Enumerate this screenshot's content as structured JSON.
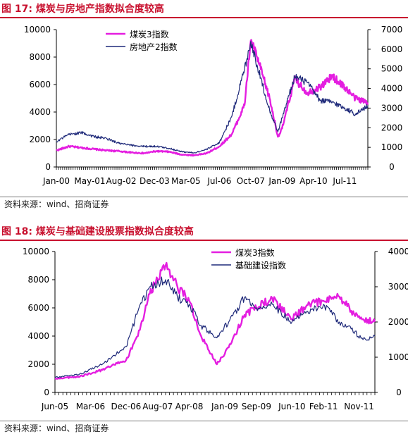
{
  "figures": [
    {
      "title": "图 17: 煤炭与房地产指数拟合度较高",
      "source": "资料来源：wind、招商证券"
    },
    {
      "title": "图 18: 煤炭与基础建设股票指数拟合度较高",
      "source": "资料来源：wind、招商证券"
    }
  ],
  "colors": {
    "coal": "#e41ee0",
    "other": "#1f2a7a",
    "title": "#c8102e"
  },
  "chart_data": [
    {
      "type": "line",
      "title": "",
      "legend_placement": "top-left",
      "x_tick_labels": [
        "Jan-00",
        "May-01",
        "Aug-02",
        "Dec-03",
        "Mar-05",
        "Jul-06",
        "Oct-07",
        "Jan-09",
        "Apr-10",
        "Jul-11"
      ],
      "y_left": {
        "lim": [
          0,
          10000
        ],
        "ticks": [
          0,
          2000,
          4000,
          6000,
          8000,
          10000
        ]
      },
      "y_right": {
        "lim": [
          0,
          7000
        ],
        "ticks": [
          0,
          1000,
          2000,
          3000,
          4000,
          5000,
          6000,
          7000
        ]
      },
      "series": [
        {
          "name": "煤炭3指数",
          "axis": "left",
          "color": "#e41ee0",
          "x": [
            "Jan-00",
            "Jul-00",
            "Jan-01",
            "Jul-01",
            "Jan-02",
            "Jul-02",
            "Jan-03",
            "Jul-03",
            "Jan-04",
            "Jul-04",
            "Jan-05",
            "Jul-05",
            "Jan-06",
            "Jul-06",
            "Jan-07",
            "Jul-07",
            "Oct-07",
            "Jan-08",
            "Jul-08",
            "Nov-08",
            "Jan-09",
            "Jul-09",
            "Jan-10",
            "Jul-10",
            "Jan-11",
            "Jul-11",
            "Dec-11",
            "Jun-12"
          ],
          "values": [
            1200,
            1500,
            1400,
            1300,
            1200,
            1150,
            1050,
            1000,
            1150,
            1100,
            900,
            850,
            1000,
            1500,
            2400,
            4500,
            9200,
            8000,
            5000,
            2200,
            2800,
            6400,
            5400,
            5800,
            6600,
            5800,
            5000,
            4700
          ]
        },
        {
          "name": "房地产2指数",
          "axis": "right",
          "color": "#1f2a7a",
          "x": [
            "Jan-00",
            "Jul-00",
            "Jan-01",
            "Jul-01",
            "Jan-02",
            "Jul-02",
            "Jan-03",
            "Jul-03",
            "Jan-04",
            "Jul-04",
            "Jan-05",
            "Jul-05",
            "Jan-06",
            "Jul-06",
            "Jan-07",
            "Jul-07",
            "Oct-07",
            "Jan-08",
            "Jul-08",
            "Nov-08",
            "Jan-09",
            "Jul-09",
            "Jan-10",
            "Jul-10",
            "Jan-11",
            "Jul-11",
            "Dec-11",
            "Jun-12"
          ],
          "values": [
            1300,
            1650,
            1750,
            1550,
            1450,
            1200,
            1100,
            1050,
            1050,
            950,
            780,
            720,
            900,
            1250,
            2600,
            5000,
            6400,
            5200,
            2900,
            1800,
            2500,
            4600,
            4300,
            3400,
            3300,
            3000,
            2700,
            3100
          ]
        }
      ]
    },
    {
      "type": "line",
      "title": "",
      "legend_placement": "top-right",
      "x_tick_labels": [
        "Jun-05",
        "Mar-06",
        "Dec-06",
        "Aug-07",
        "Apr-08",
        "Jan-09",
        "Sep-09",
        "Jun-10",
        "Feb-11",
        "Nov-11"
      ],
      "y_left": {
        "lim": [
          0,
          10000
        ],
        "ticks": [
          0,
          2000,
          4000,
          6000,
          8000,
          10000
        ]
      },
      "y_right": {
        "lim": [
          0,
          4000
        ],
        "ticks": [
          0,
          1000,
          2000,
          3000,
          4000
        ]
      },
      "series": [
        {
          "name": "煤炭3指数",
          "axis": "left",
          "color": "#e41ee0",
          "x": [
            "Jun-05",
            "Dec-05",
            "Jun-06",
            "Dec-06",
            "Mar-07",
            "Jun-07",
            "Oct-07",
            "Jan-08",
            "Apr-08",
            "Jul-08",
            "Nov-08",
            "Feb-09",
            "Jun-09",
            "Sep-09",
            "Jan-10",
            "Jun-10",
            "Oct-10",
            "Feb-11",
            "Jun-11",
            "Sep-11",
            "Dec-11",
            "Mar-12"
          ],
          "values": [
            1000,
            1100,
            1600,
            2300,
            4000,
            7000,
            9000,
            7500,
            6500,
            4000,
            2000,
            3200,
            5500,
            6000,
            6700,
            5200,
            6200,
            6500,
            6800,
            5800,
            5200,
            5000
          ]
        },
        {
          "name": "基础建设指数",
          "axis": "right",
          "color": "#1f2a7a",
          "x": [
            "Jun-05",
            "Dec-05",
            "Jun-06",
            "Dec-06",
            "Mar-07",
            "Jun-07",
            "Oct-07",
            "Jan-08",
            "Apr-08",
            "Jul-08",
            "Nov-08",
            "Feb-09",
            "Jun-09",
            "Sep-09",
            "Jan-10",
            "Jun-10",
            "Oct-10",
            "Feb-11",
            "Jun-11",
            "Sep-11",
            "Dec-11",
            "Mar-12"
          ],
          "values": [
            430,
            500,
            800,
            1300,
            2300,
            3000,
            3200,
            2700,
            2500,
            1900,
            1550,
            2000,
            2700,
            2400,
            2500,
            2000,
            2300,
            2500,
            2000,
            1800,
            1500,
            1600
          ]
        }
      ]
    }
  ]
}
